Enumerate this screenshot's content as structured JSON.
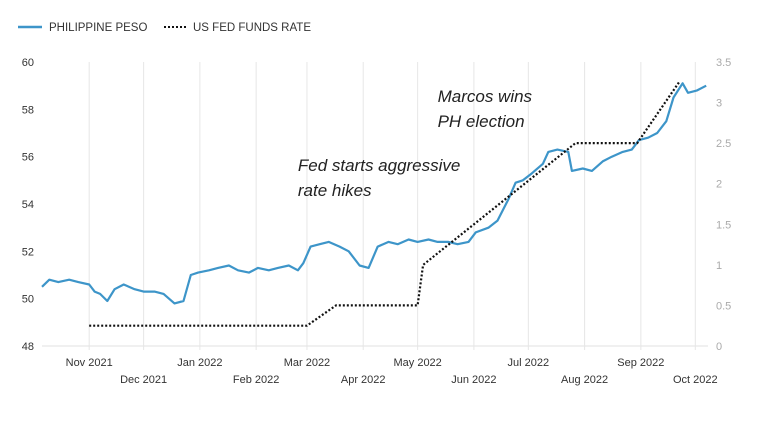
{
  "chart_data": {
    "type": "line",
    "title": "",
    "legend": {
      "placement": "top-left",
      "entries": [
        "PHILIPPINE PESO",
        "US FED FUNDS RATE"
      ]
    },
    "colors": {
      "peso": "#3d95c9",
      "fed": "#111111",
      "grid": "#e6e6e6"
    },
    "x_range": [
      "2021-10-06",
      "2022-10-08"
    ],
    "x_ticks": [
      "Nov 2021",
      "Dec 2021",
      "Jan 2022",
      "Feb 2022",
      "Mar 2022",
      "Apr 2022",
      "May 2022",
      "Jun 2022",
      "Jul 2022",
      "Aug 2022",
      "Sep 2022",
      "Oct 2022"
    ],
    "x_tick_dates": [
      "2021-11-01",
      "2021-12-01",
      "2022-01-01",
      "2022-02-01",
      "2022-03-01",
      "2022-04-01",
      "2022-05-01",
      "2022-06-01",
      "2022-07-01",
      "2022-08-01",
      "2022-09-01",
      "2022-10-01"
    ],
    "y_left": {
      "ylim": [
        48,
        60
      ],
      "ticks": [
        "48",
        "50",
        "52",
        "54",
        "56",
        "58",
        "60"
      ]
    },
    "y_right": {
      "ylim": [
        0,
        3.5
      ],
      "ticks": [
        "0",
        "0.5",
        "1",
        "1.5",
        "2",
        "2.5",
        "3",
        "3.5"
      ]
    },
    "series": [
      {
        "name": "PHILIPPINE PESO",
        "axis": "left",
        "style": "solid",
        "points": [
          [
            "2021-10-06",
            50.5
          ],
          [
            "2021-10-10",
            50.8
          ],
          [
            "2021-10-15",
            50.7
          ],
          [
            "2021-10-21",
            50.8
          ],
          [
            "2021-10-26",
            50.7
          ],
          [
            "2021-11-01",
            50.6
          ],
          [
            "2021-11-04",
            50.3
          ],
          [
            "2021-11-07",
            50.2
          ],
          [
            "2021-11-11",
            49.9
          ],
          [
            "2021-11-15",
            50.4
          ],
          [
            "2021-11-20",
            50.6
          ],
          [
            "2021-11-26",
            50.4
          ],
          [
            "2021-12-01",
            50.3
          ],
          [
            "2021-12-07",
            50.3
          ],
          [
            "2021-12-12",
            50.2
          ],
          [
            "2021-12-18",
            49.8
          ],
          [
            "2021-12-23",
            49.9
          ],
          [
            "2021-12-27",
            51.0
          ],
          [
            "2021-12-31",
            51.1
          ],
          [
            "2022-01-06",
            51.2
          ],
          [
            "2022-01-11",
            51.3
          ],
          [
            "2022-01-17",
            51.4
          ],
          [
            "2022-01-22",
            51.2
          ],
          [
            "2022-01-28",
            51.1
          ],
          [
            "2022-02-02",
            51.3
          ],
          [
            "2022-02-08",
            51.2
          ],
          [
            "2022-02-13",
            51.3
          ],
          [
            "2022-02-19",
            51.4
          ],
          [
            "2022-02-24",
            51.2
          ],
          [
            "2022-02-27",
            51.5
          ],
          [
            "2022-03-03",
            52.2
          ],
          [
            "2022-03-08",
            52.3
          ],
          [
            "2022-03-13",
            52.4
          ],
          [
            "2022-03-19",
            52.2
          ],
          [
            "2022-03-24",
            52.0
          ],
          [
            "2022-03-30",
            51.4
          ],
          [
            "2022-04-04",
            51.3
          ],
          [
            "2022-04-09",
            52.2
          ],
          [
            "2022-04-15",
            52.4
          ],
          [
            "2022-04-20",
            52.3
          ],
          [
            "2022-04-26",
            52.5
          ],
          [
            "2022-05-01",
            52.4
          ],
          [
            "2022-05-07",
            52.5
          ],
          [
            "2022-05-12",
            52.4
          ],
          [
            "2022-05-18",
            52.4
          ],
          [
            "2022-05-23",
            52.3
          ],
          [
            "2022-05-29",
            52.4
          ],
          [
            "2022-06-02",
            52.8
          ],
          [
            "2022-06-09",
            53.0
          ],
          [
            "2022-06-14",
            53.3
          ],
          [
            "2022-06-20",
            54.2
          ],
          [
            "2022-06-24",
            54.9
          ],
          [
            "2022-06-28",
            55.0
          ],
          [
            "2022-07-03",
            55.3
          ],
          [
            "2022-07-09",
            55.7
          ],
          [
            "2022-07-12",
            56.2
          ],
          [
            "2022-07-17",
            56.3
          ],
          [
            "2022-07-23",
            56.2
          ],
          [
            "2022-07-25",
            55.4
          ],
          [
            "2022-07-31",
            55.5
          ],
          [
            "2022-08-05",
            55.4
          ],
          [
            "2022-08-11",
            55.8
          ],
          [
            "2022-08-16",
            56.0
          ],
          [
            "2022-08-22",
            56.2
          ],
          [
            "2022-08-27",
            56.3
          ],
          [
            "2022-08-31",
            56.7
          ],
          [
            "2022-09-05",
            56.8
          ],
          [
            "2022-09-10",
            57.0
          ],
          [
            "2022-09-15",
            57.5
          ],
          [
            "2022-09-19",
            58.5
          ],
          [
            "2022-09-24",
            59.1
          ],
          [
            "2022-09-27",
            58.7
          ],
          [
            "2022-10-02",
            58.8
          ],
          [
            "2022-10-07",
            59.0
          ]
        ]
      },
      {
        "name": "US FED FUNDS RATE",
        "axis": "right",
        "style": "dotted",
        "points": [
          [
            "2021-11-01",
            0.25
          ],
          [
            "2022-03-01",
            0.25
          ],
          [
            "2022-03-17",
            0.5
          ],
          [
            "2022-05-01",
            0.5
          ],
          [
            "2022-05-04",
            1.0
          ],
          [
            "2022-07-27",
            2.5
          ],
          [
            "2022-08-30",
            2.5
          ],
          [
            "2022-09-22",
            3.25
          ]
        ]
      }
    ],
    "annotations": [
      {
        "lines": [
          "Marcos wins",
          "PH election"
        ],
        "date": "2022-05-12",
        "value": 58.3
      },
      {
        "lines": [
          "Fed starts aggressive",
          "rate hikes"
        ],
        "date": "2022-02-24",
        "value": 55.4
      }
    ]
  }
}
